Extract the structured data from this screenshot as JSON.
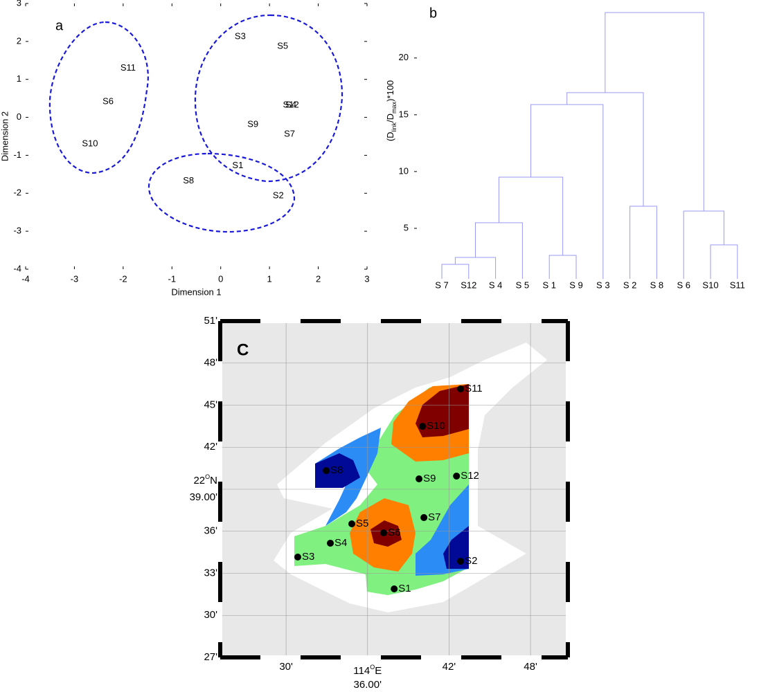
{
  "chart_data": [
    {
      "type": "scatter",
      "panel_label": "a",
      "xlabel": "Dimension 1",
      "ylabel": "Dimension 2",
      "labels": [
        "S3",
        "S5",
        "S11",
        "S6",
        "S4",
        "S12",
        "S9",
        "S7",
        "S10",
        "S1",
        "S8",
        "S2"
      ],
      "x": [
        0.4,
        1.27,
        -1.9,
        -2.31,
        1.44,
        1.44,
        0.66,
        1.41,
        -2.68,
        0.35,
        -0.66,
        1.18
      ],
      "y": [
        2.12,
        1.87,
        1.29,
        0.41,
        0.32,
        0.32,
        -0.19,
        -0.45,
        -0.7,
        -1.28,
        -1.68,
        -2.07
      ],
      "xlim": [
        -4,
        3
      ],
      "ylim": [
        -4,
        3
      ],
      "xticks": [
        -4,
        -3,
        -2,
        -1,
        0,
        1,
        2,
        3
      ],
      "yticks": [
        -4,
        -3,
        -2,
        -1,
        0,
        1,
        2,
        3
      ]
    },
    {
      "type": "dendrogram",
      "panel_label": "b",
      "ylabel": [
        "(D",
        "link",
        "/D",
        "max",
        ")*100"
      ],
      "leaves": [
        "S 7",
        "S12",
        "S 4",
        "S 5",
        "S 1",
        "S 9",
        "S 3",
        "S 2",
        "S 8",
        "S 6",
        "S10",
        "S11"
      ],
      "heights": [
        1.83,
        2.44,
        5.49,
        2.62,
        9.51,
        15.9,
        6.95,
        16.95,
        3.54,
        6.52,
        24.0
      ],
      "ylim": [
        0.55,
        24.8
      ],
      "yticks": [
        5,
        10,
        15,
        20
      ],
      "color": "#9a9af5"
    },
    {
      "type": "map",
      "panel_label": "C",
      "stations": [
        "S11",
        "S10",
        "S8",
        "S9",
        "S12",
        "S7",
        "S5",
        "S6",
        "S4",
        "S3",
        "S2",
        "S1"
      ],
      "lon": [
        42.85,
        40.05,
        32.96,
        39.79,
        42.55,
        40.15,
        34.84,
        37.19,
        33.26,
        30.86,
        42.85,
        37.96
      ],
      "lat": [
        46.16,
        43.49,
        40.33,
        39.74,
        39.94,
        36.98,
        36.53,
        35.89,
        35.15,
        34.16,
        33.86,
        31.89
      ],
      "xlim": [
        25.15,
        50.75
      ],
      "ylim": [
        27,
        51
      ],
      "xticks": [
        {
          "value": 30,
          "label": "30'"
        },
        {
          "value": 36,
          "label": "36.00'"
        },
        {
          "value": 42,
          "label": "42'"
        },
        {
          "value": 48,
          "label": "48'"
        }
      ],
      "yticks": [
        {
          "value": 27,
          "label": "27'"
        },
        {
          "value": 30,
          "label": "30'"
        },
        {
          "value": 33,
          "label": "33'"
        },
        {
          "value": 36,
          "label": "36'"
        },
        {
          "value": 39,
          "label": "39.00'"
        },
        {
          "value": 42,
          "label": "42'"
        },
        {
          "value": 45,
          "label": "45'"
        },
        {
          "value": 48,
          "label": "48'"
        },
        {
          "value": 51,
          "label": "51'"
        }
      ],
      "xlabel": [
        "114",
        "O",
        "E"
      ],
      "ylabel": [
        "22",
        "O",
        "N"
      ]
    }
  ]
}
